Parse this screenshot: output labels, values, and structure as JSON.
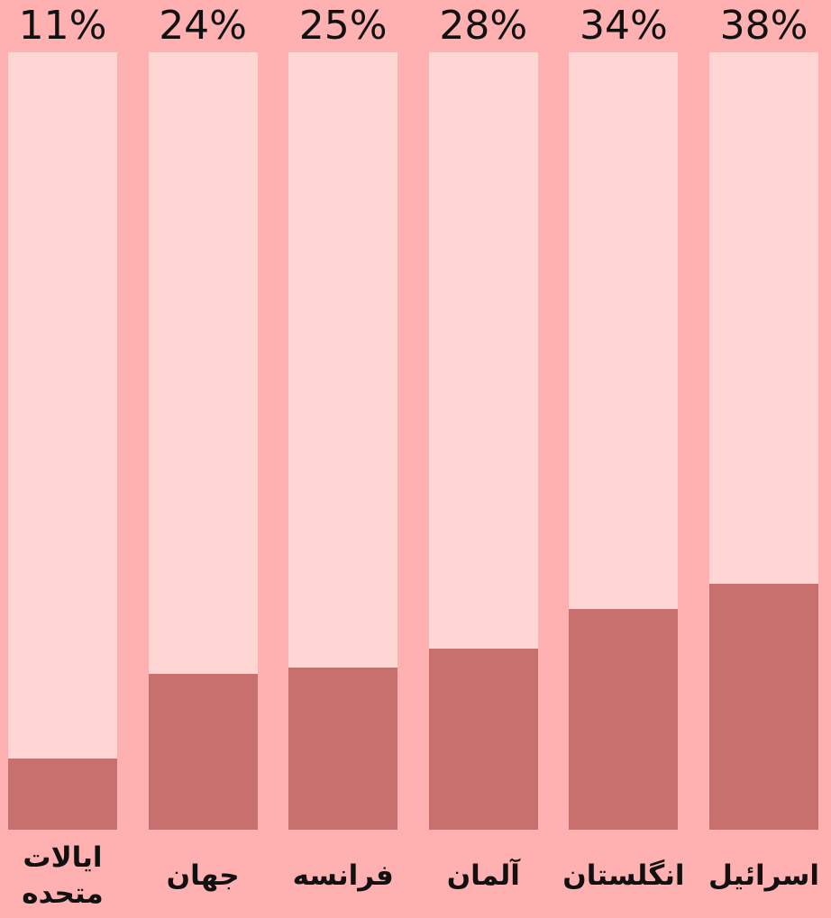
{
  "chart_data": {
    "type": "bar",
    "categories": [
      "ایالات متحده",
      "جهان",
      "فرانسه",
      "آلمان",
      "انگلستان",
      "اسرائیل"
    ],
    "values": [
      11,
      24,
      25,
      28,
      34,
      38
    ],
    "value_labels": [
      "11%",
      "24%",
      "25%",
      "28%",
      "34%",
      "38%"
    ],
    "color": "#c7706e",
    "track_color": "#ffd6d4",
    "background": "#ffb0b0",
    "ylim": [
      0,
      120
    ]
  }
}
